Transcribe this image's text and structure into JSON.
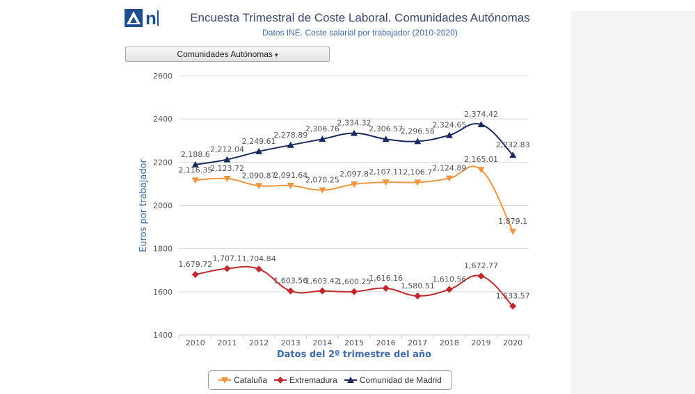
{
  "header": {
    "logo_text": "n",
    "title": "Encuesta Trimestral de Coste Laboral. Comunidades Autónomas",
    "subtitle": "Datos INE. Coste salarial por trabajador (2010-2020)"
  },
  "dropdown": {
    "label": "Comunidades Autónomas",
    "caret": "▾"
  },
  "colors": {
    "brand": "#1f4e8c",
    "grid": "#d9d9d9",
    "axis_title": "#3e6aa8"
  },
  "chart_data": {
    "type": "line",
    "title": "Encuesta Trimestral de Coste Laboral. Comunidades Autónomas",
    "subtitle": "Datos INE. Coste salarial por trabajador (2010-2020)",
    "xlabel": "Datos del 2º trimestre del año",
    "ylabel": "Euros por trabajador",
    "ylim": [
      1400,
      2600
    ],
    "yticks": [
      1400,
      1600,
      1800,
      2000,
      2200,
      2400,
      2600
    ],
    "categories": [
      "2010",
      "2011",
      "2012",
      "2013",
      "2014",
      "2015",
      "2016",
      "2017",
      "2018",
      "2019",
      "2020"
    ],
    "grid": true,
    "legend_position": "bottom-center",
    "series": [
      {
        "name": "Cataluña",
        "color": "#f0953f",
        "marker": "triangle-down",
        "values": [
          2116.35,
          2123.72,
          2090.87,
          2091.64,
          2070.25,
          2097.8,
          2107.11,
          2106.7,
          2124.89,
          2165.01,
          1879.1
        ],
        "labels": [
          "2,116.35",
          "2,123.72",
          "2,090.87",
          "2,091.64",
          "2,070.25",
          "2,097.8",
          "2,107.11",
          "2,106.7",
          "2,124.89",
          "2,165.01",
          "1,879.1"
        ]
      },
      {
        "name": "Extremadura",
        "color": "#c0282d",
        "marker": "diamond",
        "values": [
          1679.72,
          1707.1,
          1704.84,
          1603.56,
          1603.42,
          1600.25,
          1616.16,
          1580.51,
          1610.56,
          1672.77,
          1533.57
        ],
        "labels": [
          "1,679.72",
          "1,707.1",
          "1,704.84",
          "1,603.56",
          "1,603.42",
          "1,600.25",
          "1,616.16",
          "1,580.51",
          "1,610.56",
          "1,672.77",
          "1,533.57"
        ]
      },
      {
        "name": "Comunidad de Madrid",
        "color": "#1b2a5e",
        "marker": "triangle",
        "values": [
          2188.6,
          2212.04,
          2249.61,
          2278.89,
          2306.76,
          2334.32,
          2306.57,
          2296.58,
          2324.65,
          2374.42,
          2232.83
        ],
        "labels": [
          "2,188.6",
          "2,212.04",
          "2,249.61",
          "2,278.89",
          "2,306.76",
          "2,334.32",
          "2,306.57",
          "2,296.58",
          "2,324.65",
          "2,374.42",
          "2,232.83"
        ]
      }
    ]
  }
}
